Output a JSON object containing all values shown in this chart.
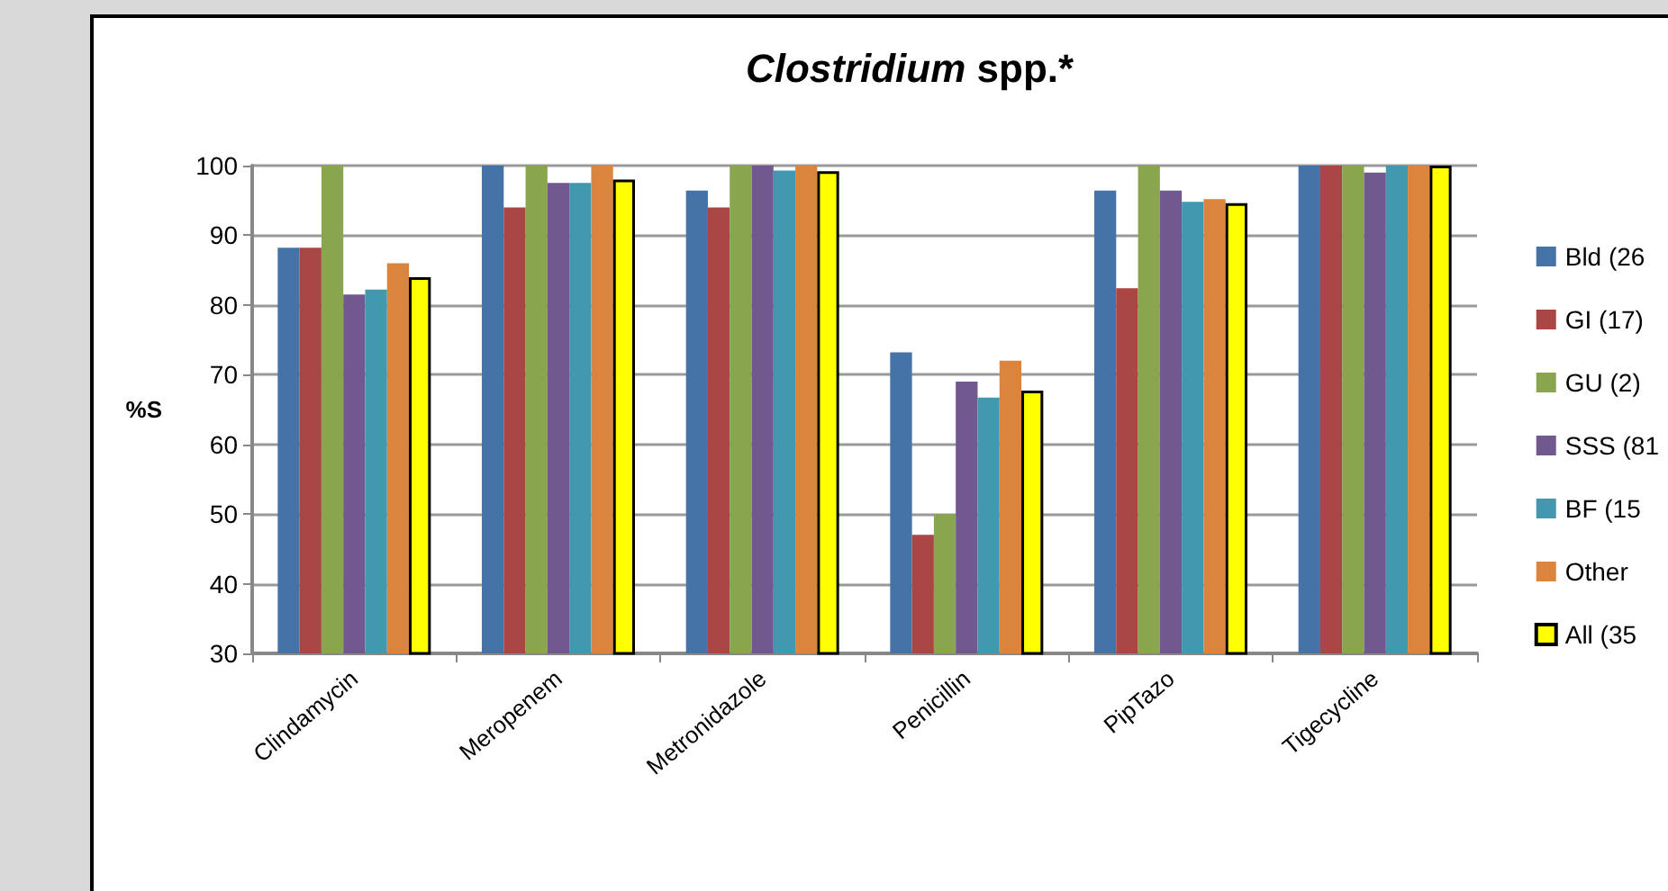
{
  "chart_data": {
    "type": "bar",
    "title": "Clostridium spp.*",
    "ylabel": "%S",
    "categories": [
      "Clindamycin",
      "Meropenem",
      "Metronidazole",
      "Penicillin",
      "PipTazo",
      "Tigecycline"
    ],
    "series": [
      {
        "name": "Bld (26",
        "color": "#4572a7",
        "values": [
          88.2,
          100,
          96.4,
          73.2,
          96.4,
          100
        ]
      },
      {
        "name": "GI (17)",
        "color": "#aa4643",
        "values": [
          88.2,
          94,
          94,
          47,
          82.4,
          100
        ]
      },
      {
        "name": "GU (2)",
        "color": "#89a54e",
        "values": [
          100,
          100,
          100,
          50,
          100,
          100
        ]
      },
      {
        "name": "SSS (81",
        "color": "#71588f",
        "values": [
          81.5,
          97.5,
          100,
          69,
          96.4,
          99
        ]
      },
      {
        "name": "BF (15",
        "color": "#4198af",
        "values": [
          82.2,
          97.5,
          99.3,
          66.7,
          94.8,
          100
        ]
      },
      {
        "name": "Other",
        "color": "#db843d",
        "values": [
          86,
          100,
          100,
          72,
          95.2,
          100
        ]
      },
      {
        "name": "All (35",
        "color": "#ffff00",
        "values": [
          84,
          98,
          99.2,
          67.7,
          94.6,
          100
        ]
      }
    ],
    "ylim": [
      30,
      100
    ],
    "yticks": [
      30,
      40,
      50,
      60,
      70,
      80,
      90,
      100
    ],
    "grid": "y",
    "legend": "right"
  }
}
